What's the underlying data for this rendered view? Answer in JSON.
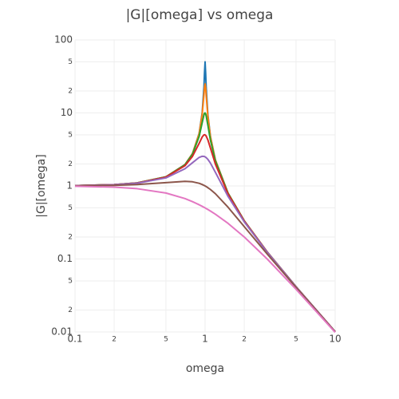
{
  "chart_data": {
    "type": "line",
    "title": "|G|[omega]  vs omega",
    "x_label": "omega",
    "y_label": "|G|[omega]",
    "log_x": true,
    "log_y": true,
    "grid": true,
    "xlim": [
      0.1,
      10
    ],
    "ylim": [
      0.01,
      100
    ],
    "xticks": [
      0.1,
      {
        "value": 0.2,
        "label": "2"
      },
      {
        "value": 0.5,
        "label": "5"
      },
      1,
      {
        "value": 2,
        "label": "2"
      },
      {
        "value": 5,
        "label": "5"
      },
      10
    ],
    "yticks": [
      0.01,
      {
        "value": 0.02,
        "label": "2"
      },
      {
        "value": 0.05,
        "label": "5"
      },
      0.1,
      {
        "value": 0.2,
        "label": "2"
      },
      {
        "value": 0.5,
        "label": "5"
      },
      1,
      {
        "value": 2,
        "label": "2"
      },
      {
        "value": 5,
        "label": "5"
      },
      10,
      {
        "value": 20,
        "label": "2"
      },
      {
        "value": 50,
        "label": "5"
      },
      100
    ],
    "x": [
      0.1,
      0.2,
      0.3,
      0.5,
      0.7,
      0.8,
      0.9,
      0.95,
      0.98,
      0.99,
      1,
      1.01,
      1.02,
      1.05,
      1.1,
      1.2,
      1.5,
      2,
      3,
      5,
      10
    ],
    "series": [
      {
        "color": "#1f77b4",
        "values": [
          1.0101,
          1.0417,
          1.0989,
          1.3332,
          1.96,
          2.775,
          5.24,
          10.07,
          22.63,
          35.62,
          50,
          35.09,
          22.1,
          9.558,
          4.736,
          2.269,
          0.7998,
          0.3333,
          0.125,
          0.04167,
          0.010101
        ]
      },
      {
        "color": "#ff7f0e",
        "values": [
          1.0101,
          1.0417,
          1.0988,
          1.3329,
          1.958,
          2.767,
          5.171,
          9.556,
          17.95,
          22.57,
          25,
          22.16,
          17.42,
          9.028,
          4.661,
          2.259,
          0.7991,
          0.3332,
          0.125,
          0.04167,
          0.010101
        ]
      },
      {
        "color": "#2ca02c",
        "values": [
          1.01,
          1.0414,
          1.0983,
          1.3304,
          1.9426,
          2.7117,
          4.7565,
          7.346,
          9.461,
          9.903,
          10,
          9.711,
          9.115,
          6.815,
          4.218,
          2.1927,
          0.7943,
          0.3326,
          0.1249,
          0.04166,
          0.0101
        ]
      },
      {
        "color": "#d62728",
        "values": [
          1.0099,
          1.0408,
          1.0965,
          1.3217,
          1.8908,
          2.5384,
          3.8208,
          4.6826,
          5.001,
          5.0252,
          5,
          4.926,
          4.8086,
          4.2794,
          3.288,
          1.9952,
          0.7779,
          0.3304,
          0.12465,
          0.04163,
          0.010099
        ]
      },
      {
        "color": "#9467bd",
        "values": [
          1.0093,
          1.0381,
          1.0895,
          1.2883,
          1.7188,
          2.0761,
          2.4566,
          2.549,
          2.5381,
          2.5221,
          2.5,
          2.4722,
          2.4391,
          2.3131,
          2.0511,
          1.5357,
          0.7212,
          0.3221,
          0.12362,
          0.04152,
          0.010093
        ]
      },
      {
        "color": "#8c564b",
        "values": [
          1.005,
          1.0198,
          1.0436,
          1.1094,
          1.1546,
          1.1399,
          1.0872,
          1.0471,
          1.0196,
          1.0099,
          1,
          0.9899,
          0.9796,
          0.9479,
          0.893,
          0.7824,
          0.5121,
          0.2774,
          0.11704,
          0.04079,
          0.01005
        ]
      },
      {
        "color": "#e377c2",
        "values": [
          0.9901,
          0.9615,
          0.9174,
          0.8,
          0.6711,
          0.6098,
          0.5525,
          0.5256,
          0.5101,
          0.505,
          0.5,
          0.495,
          0.4901,
          0.4756,
          0.4525,
          0.4098,
          0.3077,
          0.2,
          0.1,
          0.03846,
          0.009901
        ]
      }
    ]
  }
}
